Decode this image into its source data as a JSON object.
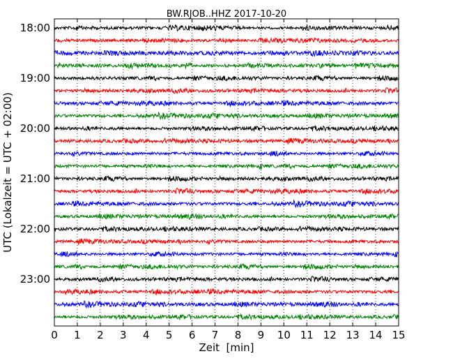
{
  "chart_data": {
    "type": "line",
    "title": "BW.RJOB..HHZ 2017-10-20",
    "xlabel": "Zeit  [min]",
    "ylabel": "UTC (Lokalzeit = UTC + 02:00)",
    "xlim": [
      0,
      15
    ],
    "x_ticks": [
      "0",
      "1",
      "2",
      "3",
      "4",
      "5",
      "6",
      "7",
      "8",
      "9",
      "10",
      "11",
      "12",
      "13",
      "14",
      "15"
    ],
    "y_ticks": [
      "18:00",
      "19:00",
      "20:00",
      "21:00",
      "22:00",
      "23:00"
    ],
    "grid": "vertical dotted lines at each minute",
    "trace_start_times": [
      "18:00",
      "18:15",
      "18:30",
      "18:45",
      "19:00",
      "19:15",
      "19:30",
      "19:45",
      "20:00",
      "20:15",
      "20:30",
      "20:45",
      "21:00",
      "21:15",
      "21:30",
      "21:45",
      "22:00",
      "22:15",
      "22:30",
      "22:45",
      "23:00",
      "23:15",
      "23:30",
      "23:45"
    ],
    "trace_colors": [
      "#000000",
      "#ff0000",
      "#0000ff",
      "#008000"
    ],
    "series_description": "24 seismogram traces, one per 15 minutes, cycling black, red, blue, green"
  }
}
